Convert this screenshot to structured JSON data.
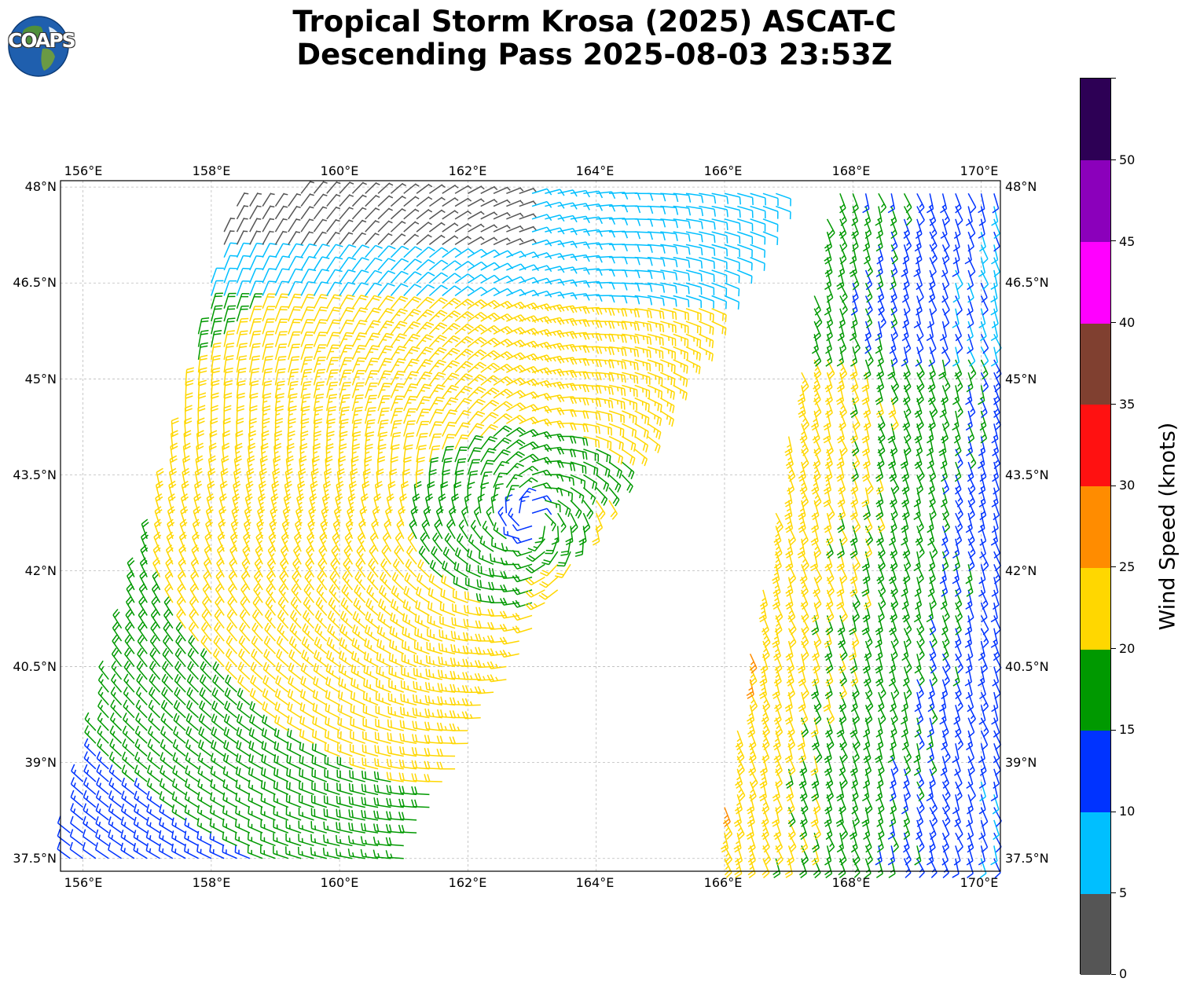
{
  "header": {
    "title_line1": "Tropical Storm Krosa (2025) ASCAT-C",
    "title_line2": "Descending Pass 2025-08-03 23:53Z",
    "logo_text": "COAPS"
  },
  "map": {
    "lon_labels": [
      "156°E",
      "158°E",
      "160°E",
      "162°E",
      "164°E",
      "166°E",
      "168°E",
      "170°E"
    ],
    "lat_labels": [
      "48°N",
      "46.5°N",
      "45°N",
      "43.5°N",
      "42°N",
      "40.5°N",
      "39°N",
      "37.5°N"
    ],
    "lon_range": [
      155.65,
      170.3
    ],
    "lat_range": [
      37.3,
      48.1
    ],
    "storm_center": {
      "lon": 163.0,
      "lat": 42.8
    },
    "swaths": [
      "western swath 155.6°E–167°E",
      "eastern swath 165.8°E–170.3°E"
    ]
  },
  "colorbar": {
    "title": "Wind Speed (knots)",
    "tick_labels": [
      "0",
      "5",
      "10",
      "15",
      "20",
      "25",
      "30",
      "35",
      "40",
      "45",
      "50"
    ],
    "bins": [
      {
        "range": "0-5",
        "color": "#555555"
      },
      {
        "range": "5-10",
        "color": "#00bfff"
      },
      {
        "range": "10-15",
        "color": "#0033ff"
      },
      {
        "range": "15-20",
        "color": "#009900"
      },
      {
        "range": "20-25",
        "color": "#ffd700"
      },
      {
        "range": "25-30",
        "color": "#ff8c00"
      },
      {
        "range": "30-35",
        "color": "#ff1111"
      },
      {
        "range": "35-40",
        "color": "#804030"
      },
      {
        "range": "40-45",
        "color": "#ff00ff"
      },
      {
        "range": "45-50",
        "color": "#8b00bb"
      },
      {
        "range": "50+",
        "color": "#2d0055"
      }
    ]
  }
}
